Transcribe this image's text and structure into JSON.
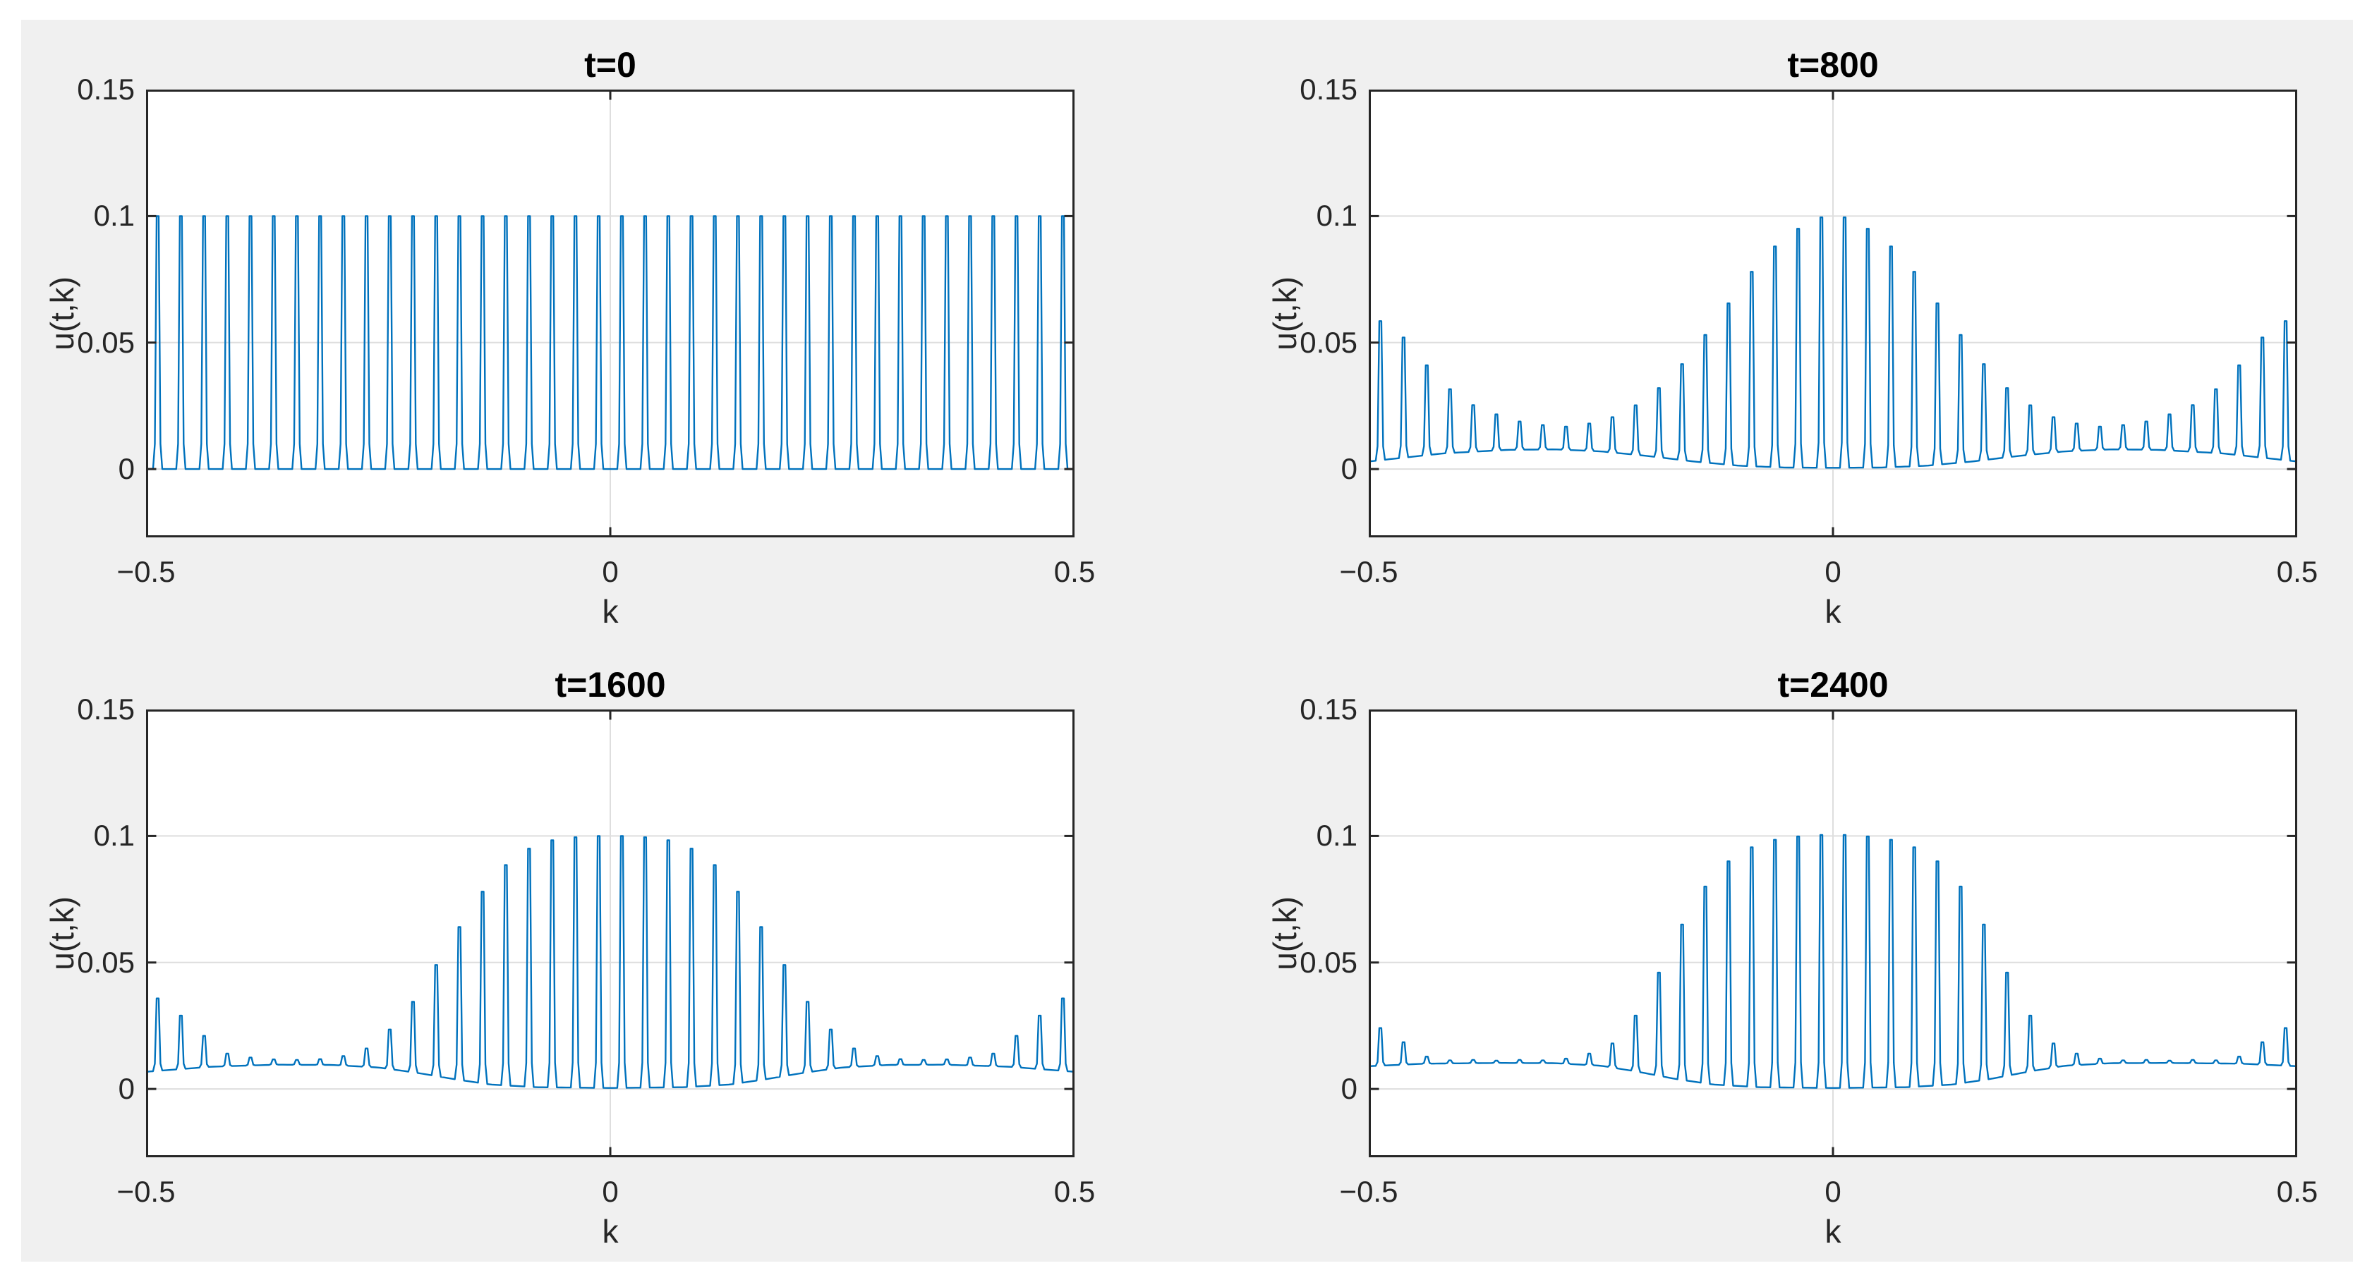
{
  "figure": {
    "page_background": "#ffffff",
    "background": "#f0f0f0"
  },
  "style": {
    "line_color": "#0072BD",
    "grid_color": "#dedede",
    "axes_color": "#262626",
    "plot_bg": "#ffffff",
    "tick_color": "#262626",
    "title_color": "#000000"
  },
  "chart_data": [
    {
      "type": "line",
      "title": "t=0",
      "xlabel": "k",
      "ylabel": "u(t,k)",
      "xlim": [
        -0.5,
        0.5
      ],
      "ylim": [
        -0.027,
        0.15
      ],
      "xticks": [
        -0.5,
        0,
        0.5
      ],
      "xtick_labels": [
        "−0.5",
        "0",
        "0.5"
      ],
      "yticks": [
        0,
        0.05,
        0.1,
        0.15
      ],
      "ytick_labels": [
        "0",
        "0.05",
        "0.1",
        "0.15"
      ],
      "grid": true,
      "legend": null,
      "series_name": "u(0,k) spectrum: uniform comb of 40 spikes, height 0.1",
      "k_start": -0.4875,
      "k_step": 0.025,
      "spike_half_width": 0.005,
      "spike_top_half_width": 0.0011,
      "peaks": [
        0.1,
        0.1,
        0.1,
        0.1,
        0.1,
        0.1,
        0.1,
        0.1,
        0.1,
        0.1,
        0.1,
        0.1,
        0.1,
        0.1,
        0.1,
        0.1,
        0.1,
        0.1,
        0.1,
        0.1,
        0.1,
        0.1,
        0.1,
        0.1,
        0.1,
        0.1,
        0.1,
        0.1,
        0.1,
        0.1,
        0.1,
        0.1,
        0.1,
        0.1,
        0.1,
        0.1,
        0.1,
        0.1,
        0.1,
        0.1
      ],
      "baseline_points": [
        [
          -0.5,
          0.0
        ],
        [
          0.5,
          0.0
        ]
      ]
    },
    {
      "type": "line",
      "title": "t=800",
      "xlabel": "k",
      "ylabel": "u(t,k)",
      "xlim": [
        -0.5,
        0.5
      ],
      "ylim": [
        -0.027,
        0.15
      ],
      "xticks": [
        -0.5,
        0,
        0.5
      ],
      "xtick_labels": [
        "−0.5",
        "0",
        "0.5"
      ],
      "yticks": [
        0,
        0.05,
        0.1,
        0.15
      ],
      "ytick_labels": [
        "0",
        "0.05",
        "0.1",
        "0.15"
      ],
      "grid": true,
      "legend": null,
      "series_name": "u(800,k) spectrum: central bump to 0.1, dip ~0.017 near |k|=0.3, edge spikes ~0.059",
      "k_start": -0.4875,
      "k_step": 0.025,
      "spike_half_width": 0.005,
      "spike_top_half_width": 0.0011,
      "peaks": [
        0.0585,
        0.052,
        0.041,
        0.0316,
        0.0253,
        0.0216,
        0.0188,
        0.0174,
        0.0168,
        0.018,
        0.0205,
        0.0252,
        0.032,
        0.0415,
        0.053,
        0.0655,
        0.078,
        0.088,
        0.095,
        0.0995,
        0.0995,
        0.095,
        0.088,
        0.078,
        0.0655,
        0.053,
        0.0415,
        0.032,
        0.0252,
        0.0205,
        0.018,
        0.0168,
        0.0174,
        0.0188,
        0.0216,
        0.0253,
        0.0316,
        0.041,
        0.052,
        0.0585
      ],
      "baseline_points": [
        [
          -0.5,
          0.003
        ],
        [
          -0.42,
          0.0062
        ],
        [
          -0.35,
          0.0076
        ],
        [
          -0.3,
          0.0078
        ],
        [
          -0.25,
          0.007
        ],
        [
          -0.2,
          0.0052
        ],
        [
          -0.15,
          0.003
        ],
        [
          -0.1,
          0.0013
        ],
        [
          -0.05,
          0.0006
        ],
        [
          0,
          0.0005
        ],
        [
          0.05,
          0.0006
        ],
        [
          0.1,
          0.0013
        ],
        [
          0.15,
          0.003
        ],
        [
          0.2,
          0.0052
        ],
        [
          0.25,
          0.007
        ],
        [
          0.3,
          0.0078
        ],
        [
          0.35,
          0.0076
        ],
        [
          0.42,
          0.0062
        ],
        [
          0.5,
          0.003
        ]
      ]
    },
    {
      "type": "line",
      "title": "t=1600",
      "xlabel": "k",
      "ylabel": "u(t,k)",
      "xlim": [
        -0.5,
        0.5
      ],
      "ylim": [
        -0.027,
        0.15
      ],
      "xticks": [
        -0.5,
        0,
        0.5
      ],
      "xtick_labels": [
        "−0.5",
        "0",
        "0.5"
      ],
      "yticks": [
        0,
        0.05,
        0.1,
        0.15
      ],
      "ytick_labels": [
        "0",
        "0.05",
        "0.1",
        "0.15"
      ],
      "grid": true,
      "legend": null,
      "series_name": "u(1600,k) spectrum: central bump to 0.1, flat floor ~0.012, edge spikes ~0.036",
      "k_start": -0.4875,
      "k_step": 0.025,
      "spike_half_width": 0.005,
      "spike_top_half_width": 0.0011,
      "peaks": [
        0.0358,
        0.029,
        0.021,
        0.014,
        0.0124,
        0.0117,
        0.0115,
        0.0118,
        0.013,
        0.016,
        0.0235,
        0.0345,
        0.049,
        0.064,
        0.078,
        0.0885,
        0.095,
        0.0983,
        0.0995,
        0.1,
        0.1,
        0.0995,
        0.0983,
        0.095,
        0.0885,
        0.078,
        0.064,
        0.049,
        0.0345,
        0.0235,
        0.016,
        0.013,
        0.0118,
        0.0115,
        0.0117,
        0.0124,
        0.014,
        0.021,
        0.029,
        0.0358
      ],
      "baseline_points": [
        [
          -0.5,
          0.0068
        ],
        [
          -0.43,
          0.0088
        ],
        [
          -0.36,
          0.0096
        ],
        [
          -0.3,
          0.0095
        ],
        [
          -0.25,
          0.0085
        ],
        [
          -0.21,
          0.0065
        ],
        [
          -0.17,
          0.004
        ],
        [
          -0.13,
          0.0018
        ],
        [
          -0.08,
          0.0007
        ],
        [
          0,
          0.0004
        ],
        [
          0.08,
          0.0007
        ],
        [
          0.13,
          0.0018
        ],
        [
          0.17,
          0.004
        ],
        [
          0.21,
          0.0065
        ],
        [
          0.25,
          0.0085
        ],
        [
          0.3,
          0.0095
        ],
        [
          0.36,
          0.0096
        ],
        [
          0.43,
          0.0088
        ],
        [
          0.5,
          0.0068
        ]
      ]
    },
    {
      "type": "line",
      "title": "t=2400",
      "xlabel": "k",
      "ylabel": "u(t,k)",
      "xlim": [
        -0.5,
        0.5
      ],
      "ylim": [
        -0.027,
        0.15
      ],
      "xticks": [
        -0.5,
        0,
        0.5
      ],
      "xtick_labels": [
        "−0.5",
        "0",
        "0.5"
      ],
      "yticks": [
        0,
        0.05,
        0.1,
        0.15
      ],
      "ytick_labels": [
        "0",
        "0.05",
        "0.1",
        "0.15"
      ],
      "grid": true,
      "legend": null,
      "series_name": "u(2400,k) spectrum: central bump to 0.1, flat floor ~0.011, edge spikes ~0.024",
      "k_start": -0.4875,
      "k_step": 0.025,
      "spike_half_width": 0.005,
      "spike_top_half_width": 0.0011,
      "peaks": [
        0.0241,
        0.0185,
        0.0128,
        0.0113,
        0.0115,
        0.0112,
        0.0115,
        0.0113,
        0.012,
        0.014,
        0.018,
        0.029,
        0.046,
        0.065,
        0.08,
        0.09,
        0.0955,
        0.0985,
        0.0998,
        0.1004,
        0.1004,
        0.0998,
        0.0985,
        0.0955,
        0.09,
        0.08,
        0.065,
        0.046,
        0.029,
        0.018,
        0.014,
        0.012,
        0.0113,
        0.0115,
        0.0112,
        0.0115,
        0.0113,
        0.0128,
        0.0185,
        0.0241
      ],
      "baseline_points": [
        [
          -0.5,
          0.009
        ],
        [
          -0.44,
          0.01
        ],
        [
          -0.36,
          0.0103
        ],
        [
          -0.3,
          0.0102
        ],
        [
          -0.25,
          0.0092
        ],
        [
          -0.21,
          0.0068
        ],
        [
          -0.17,
          0.004
        ],
        [
          -0.13,
          0.0018
        ],
        [
          -0.08,
          0.0007
        ],
        [
          0,
          0.0004
        ],
        [
          0.08,
          0.0007
        ],
        [
          0.13,
          0.0018
        ],
        [
          0.17,
          0.004
        ],
        [
          0.21,
          0.0068
        ],
        [
          0.25,
          0.0092
        ],
        [
          0.3,
          0.0102
        ],
        [
          0.36,
          0.0103
        ],
        [
          0.44,
          0.01
        ],
        [
          0.5,
          0.009
        ]
      ]
    }
  ]
}
